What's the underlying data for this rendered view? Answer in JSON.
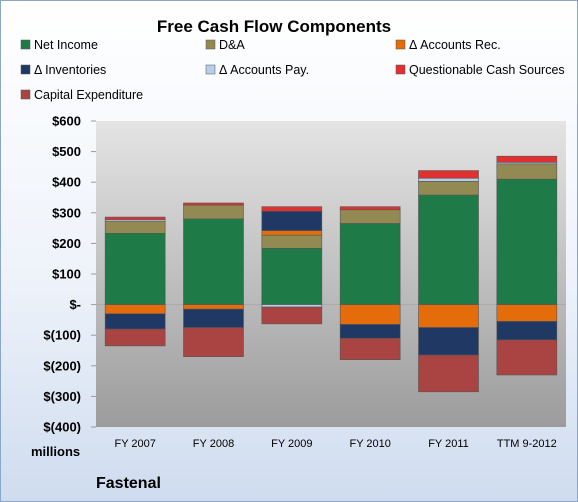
{
  "chart_data": {
    "type": "bar",
    "stacked": true,
    "title": "Free Cash Flow Components",
    "ylabel": "millions",
    "ylim": [
      -400,
      600
    ],
    "y_ticks": [
      "$600",
      "$500",
      "$400",
      "$300",
      "$200",
      "$100",
      "$-",
      "$(100)",
      "$(200)",
      "$(300)",
      "$(400)"
    ],
    "y_tick_values": [
      600,
      500,
      400,
      300,
      200,
      100,
      0,
      -100,
      -200,
      -300,
      -400
    ],
    "categories": [
      "FY 2007",
      "FY 2008",
      "FY 2009",
      "FY 2010",
      "FY 2011",
      "TTM 9-2012"
    ],
    "legend_position": "top",
    "grid": false,
    "series": [
      {
        "name": "Net Income",
        "color": "#1e7a46",
        "values": [
          233,
          280,
          184,
          265,
          358,
          410
        ]
      },
      {
        "name": "D&A",
        "color": "#938953",
        "values": [
          40,
          45,
          43,
          45,
          45,
          50
        ]
      },
      {
        "name": "Δ Accounts Rec.",
        "color": "#e46c0a",
        "values": [
          -30,
          -15,
          15,
          -65,
          -75,
          -55
        ]
      },
      {
        "name": "Δ Inventories",
        "color": "#1f3864",
        "values": [
          -50,
          -60,
          63,
          -45,
          -90,
          -60
        ]
      },
      {
        "name": "Δ Accounts Pay.",
        "color": "#b7cde8",
        "values": [
          5,
          0,
          -8,
          0,
          10,
          5
        ]
      },
      {
        "name": "Questionable Cash Sources",
        "color": "#e03030",
        "values": [
          8,
          7,
          15,
          10,
          25,
          20
        ]
      },
      {
        "name": "Capital Expenditure",
        "color": "#a94442",
        "values": [
          -55,
          -95,
          -55,
          -70,
          -120,
          -115
        ]
      }
    ]
  },
  "footer_label": "Fastenal"
}
